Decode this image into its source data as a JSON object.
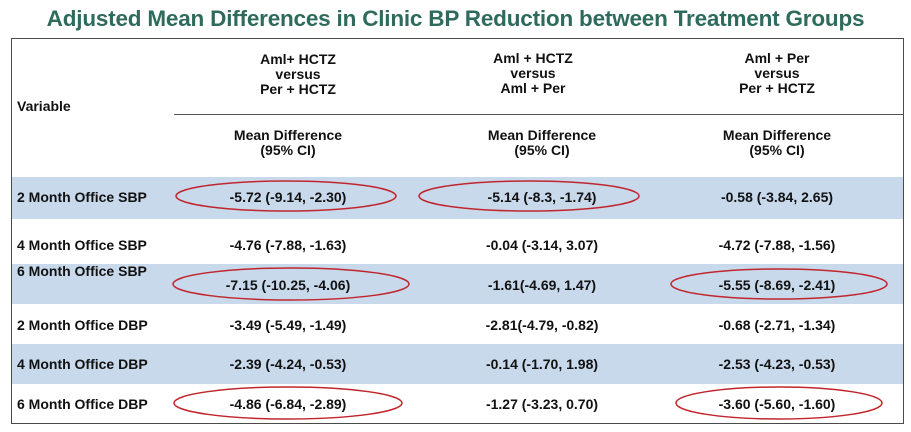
{
  "title": "Adjusted Mean Differences in Clinic BP Reduction between Treatment Groups",
  "header": {
    "variable_label": "Variable",
    "groups": [
      {
        "line1": "Aml+ HCTZ",
        "line2": "versus",
        "line3": "Per + HCTZ"
      },
      {
        "line1": "Aml + HCTZ",
        "line2": "versus",
        "line3": "Aml + Per"
      },
      {
        "line1": "Aml + Per",
        "line2": "versus",
        "line3": "Per + HCTZ"
      }
    ],
    "subheaders": [
      {
        "line1": "Mean Difference",
        "line2": "(95% CI)"
      },
      {
        "line1": "Mean Difference",
        "line2": "(95% CI)"
      },
      {
        "line1": "Mean Difference",
        "line2": "(95% CI)"
      }
    ]
  },
  "rows": [
    {
      "label": "2 Month Office SBP",
      "values": [
        "-5.72 (-9.14, -2.30)",
        "-5.14 (-8.3, -1.74)",
        "-0.58 (-3.84, 2.65)"
      ],
      "shaded": true,
      "circled": [
        true,
        true,
        false
      ]
    },
    {
      "label": "4 Month Office SBP",
      "values": [
        "-4.76 (-7.88, -1.63)",
        "-0.04 (-3.14, 3.07)",
        "-4.72 (-7.88, -1.56)"
      ],
      "shaded": false,
      "circled": [
        false,
        false,
        false
      ]
    },
    {
      "label": "6 Month  Office SBP",
      "values": [
        "-7.15 (-10.25, -4.06)",
        "-1.61(-4.69, 1.47)",
        "-5.55 (-8.69, -2.41)"
      ],
      "shaded": true,
      "circled": [
        true,
        false,
        true
      ]
    },
    {
      "label": "2 Month Office DBP",
      "values": [
        "-3.49 (-5.49, -1.49)",
        "-2.81(-4.79, -0.82)",
        "-0.68 (-2.71, -1.34)"
      ],
      "shaded": false,
      "circled": [
        false,
        false,
        false
      ]
    },
    {
      "label": "4 Month Office DBP",
      "values": [
        "-2.39 (-4.24, -0.53)",
        "-0.14 (-1.70, 1.98)",
        "-2.53 (-4.23, -0.53)"
      ],
      "shaded": true,
      "circled": [
        false,
        false,
        false
      ]
    },
    {
      "label": "6 Month Office DBP",
      "values": [
        "-4.86 (-6.84, -2.89)",
        "-1.27 (-3.23, 0.70)",
        "-3.60 (-5.60, -1.60)"
      ],
      "shaded": false,
      "circled": [
        true,
        false,
        true
      ]
    }
  ],
  "colors": {
    "title": "#2e6b5c",
    "row_shade": "#c8d9ec",
    "highlight_oval": "#c0262d"
  }
}
